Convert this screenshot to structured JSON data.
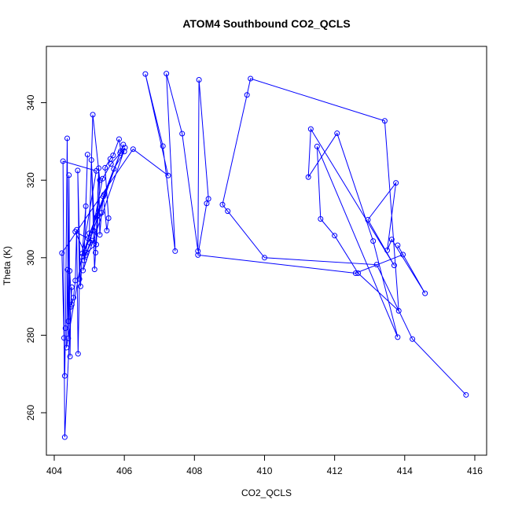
{
  "chart_data": {
    "type": "line",
    "title": "ATOM4 Southbound CO2_QCLS",
    "xlabel": "CO2_QCLS",
    "ylabel": "Theta (K)",
    "xlim": [
      404,
      416
    ],
    "ylim": [
      250,
      350
    ],
    "xticks": [
      404,
      406,
      408,
      410,
      412,
      414,
      416
    ],
    "yticks": [
      260,
      280,
      300,
      320,
      340
    ],
    "grid": false,
    "series": [
      {
        "color": "#0000ff",
        "points": [
          [
            415.75,
            264.6
          ],
          [
            414.22,
            279.0
          ],
          [
            413.2,
            298.2
          ],
          [
            410.0,
            300.0
          ],
          [
            408.95,
            312.0
          ],
          [
            408.8,
            313.7
          ],
          [
            409.5,
            342.0
          ],
          [
            409.6,
            346.2
          ],
          [
            413.43,
            335.3
          ],
          [
            413.83,
            286.3
          ],
          [
            412.67,
            296.0
          ],
          [
            412.0,
            305.7
          ],
          [
            411.6,
            310.0
          ],
          [
            411.5,
            328.7
          ],
          [
            413.8,
            279.5
          ],
          [
            413.1,
            304.3
          ],
          [
            412.07,
            332.1
          ],
          [
            411.25,
            320.8
          ],
          [
            411.32,
            333.2
          ],
          [
            413.7,
            298.0
          ],
          [
            412.95,
            309.8
          ],
          [
            413.75,
            319.3
          ],
          [
            413.5,
            301.9
          ],
          [
            413.63,
            304.7
          ],
          [
            414.58,
            290.8
          ],
          [
            413.8,
            303.2
          ],
          [
            413.95,
            300.8
          ],
          [
            412.6,
            296.0
          ],
          [
            408.1,
            300.7
          ],
          [
            408.35,
            314.0
          ],
          [
            408.4,
            315.2
          ],
          [
            408.13,
            345.9
          ],
          [
            408.1,
            301.7
          ],
          [
            407.65,
            332.0
          ],
          [
            407.2,
            347.5
          ],
          [
            407.45,
            301.7
          ],
          [
            407.1,
            328.8
          ],
          [
            406.6,
            347.4
          ],
          [
            407.25,
            321.2
          ],
          [
            406.25,
            328.0
          ],
          [
            404.22,
            301.2
          ],
          [
            404.28,
            279.3
          ],
          [
            404.3,
            269.5
          ],
          [
            404.32,
            281.8
          ],
          [
            404.37,
            330.8
          ],
          [
            404.4,
            283.6
          ],
          [
            404.42,
            321.3
          ],
          [
            404.45,
            274.5
          ],
          [
            404.47,
            287.3
          ],
          [
            404.5,
            292.4
          ],
          [
            404.3,
            253.7
          ],
          [
            404.25,
            324.9
          ],
          [
            405.2,
            322.4
          ],
          [
            404.35,
            276.8
          ],
          [
            404.38,
            296.9
          ],
          [
            404.4,
            279.2
          ],
          [
            404.44,
            296.6
          ],
          [
            404.5,
            287.9
          ],
          [
            404.55,
            289.7
          ],
          [
            404.6,
            294.1
          ],
          [
            404.64,
            307.2
          ],
          [
            404.68,
            275.2
          ],
          [
            404.72,
            294.5
          ],
          [
            404.67,
            322.5
          ],
          [
            404.75,
            292.6
          ],
          [
            404.8,
            301.1
          ],
          [
            404.9,
            313.3
          ],
          [
            404.95,
            326.6
          ],
          [
            404.85,
            299.3
          ],
          [
            405.0,
            306.3
          ],
          [
            405.1,
            336.9
          ],
          [
            405.3,
            320.0
          ],
          [
            405.15,
            297.0
          ],
          [
            405.06,
            325.2
          ],
          [
            405.18,
            301.3
          ],
          [
            405.22,
            310.6
          ],
          [
            405.27,
            323.1
          ],
          [
            405.3,
            305.9
          ],
          [
            405.35,
            311.6
          ],
          [
            405.4,
            315.8
          ],
          [
            405.5,
            307.0
          ],
          [
            405.55,
            310.2
          ],
          [
            405.45,
            323.2
          ],
          [
            405.6,
            325.5
          ],
          [
            405.68,
            326.4
          ],
          [
            405.85,
            330.6
          ],
          [
            405.9,
            327.5
          ],
          [
            405.97,
            329.2
          ],
          [
            405.25,
            311.0
          ],
          [
            405.2,
            303.4
          ],
          [
            404.92,
            301.3
          ],
          [
            405.08,
            304.4
          ],
          [
            404.6,
            306.7
          ],
          [
            404.9,
            300.7
          ],
          [
            405.02,
            303.8
          ],
          [
            405.38,
            320.4
          ],
          [
            405.62,
            324.2
          ],
          [
            406.02,
            328.4
          ],
          [
            404.82,
            296.7
          ],
          [
            404.96,
            305.0
          ],
          [
            405.88,
            327.0
          ],
          [
            404.78,
            300.2
          ],
          [
            405.12,
            307.0
          ],
          [
            405.42,
            316.3
          ],
          [
            405.7,
            322.9
          ],
          [
            406.0,
            327.4
          ]
        ]
      }
    ]
  }
}
